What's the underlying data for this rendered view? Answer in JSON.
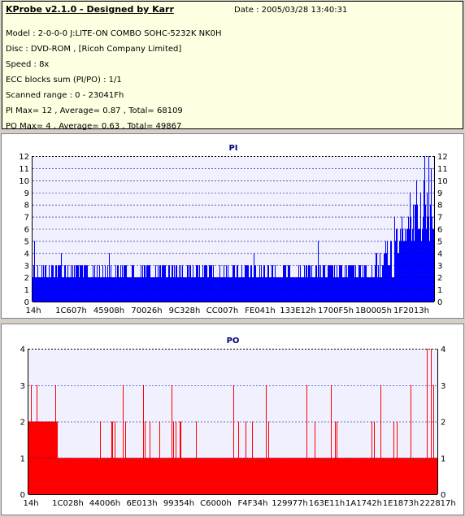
{
  "info": {
    "title": "KProbe v2.1.0 - Designed by Karr",
    "date": "Date : 2005/03/28 13:40:31",
    "lines": [
      "Model : 2-0-0-0 J:LITE-ON COMBO SOHC-5232K NK0H",
      "Disc : DVD-ROM ,  [Ricoh Company Limited]",
      "Speed : 8x",
      "ECC blocks sum (PI/PO) : 1/1",
      "Scanned range : 0 - 23041Fh",
      "PI Max= 12 , Average= 0.87 , Total= 68109",
      "PO Max= 4 , Average= 0.63 , Total= 49867"
    ]
  },
  "colors": {
    "pi": "#0000ff",
    "po": "#ff0000",
    "plot_bg": "#f0f0ff",
    "grid": "#000080"
  },
  "chart_data": [
    {
      "type": "bar",
      "title": "PI",
      "xlabel": "",
      "ylabel": "",
      "ylim": [
        0,
        12
      ],
      "yticks": [
        0,
        1,
        2,
        3,
        4,
        5,
        6,
        7,
        8,
        9,
        10,
        11,
        12
      ],
      "xticks": [
        "14h",
        "1C607h",
        "45908h",
        "70026h",
        "9C328h",
        "CC007h",
        "FE041h",
        "133E12h",
        "1700F5h",
        "1B0005h",
        "1F2013h"
      ],
      "grid": true,
      "baseline": {
        "from": 0.0,
        "to": 0.85,
        "value": 2
      },
      "rise_segments": [
        [
          0.85,
          3
        ],
        [
          0.9,
          4
        ],
        [
          0.95,
          6
        ],
        [
          1.0,
          7
        ]
      ],
      "notable_peaks": [
        {
          "pos": 0.005,
          "value": 5
        },
        {
          "pos": 0.07,
          "value": 4
        },
        {
          "pos": 0.19,
          "value": 4
        },
        {
          "pos": 0.55,
          "value": 4
        },
        {
          "pos": 0.71,
          "value": 5
        },
        {
          "pos": 0.9,
          "value": 7
        },
        {
          "pos": 0.94,
          "value": 9
        },
        {
          "pos": 0.955,
          "value": 10
        },
        {
          "pos": 0.975,
          "value": 12
        },
        {
          "pos": 0.985,
          "value": 12
        },
        {
          "pos": 0.992,
          "value": 11
        }
      ]
    },
    {
      "type": "bar",
      "title": "PO",
      "xlabel": "",
      "ylabel": "",
      "ylim": [
        0,
        4
      ],
      "yticks": [
        0,
        1,
        2,
        3,
        4
      ],
      "xticks": [
        "14h",
        "1C028h",
        "44006h",
        "6E013h",
        "99354h",
        "C6000h",
        "F4F34h",
        "129977h",
        "163E11h",
        "1A1742h",
        "1E1873h",
        "222817h"
      ],
      "grid": true,
      "segments": [
        {
          "from": 0.0,
          "to": 0.07,
          "value": 2
        },
        {
          "from": 0.07,
          "to": 1.0,
          "value": 1
        }
      ],
      "notable_peaks": [
        {
          "pos": 0.005,
          "value": 3
        },
        {
          "pos": 0.02,
          "value": 3
        },
        {
          "pos": 0.065,
          "value": 3
        },
        {
          "pos": 0.23,
          "value": 3
        },
        {
          "pos": 0.28,
          "value": 3
        },
        {
          "pos": 0.35,
          "value": 3
        },
        {
          "pos": 0.5,
          "value": 3
        },
        {
          "pos": 0.58,
          "value": 3
        },
        {
          "pos": 0.68,
          "value": 3
        },
        {
          "pos": 0.74,
          "value": 3
        },
        {
          "pos": 0.86,
          "value": 3
        },
        {
          "pos": 0.935,
          "value": 3
        },
        {
          "pos": 0.975,
          "value": 4
        },
        {
          "pos": 0.985,
          "value": 4
        },
        {
          "pos": 0.99,
          "value": 3
        }
      ]
    }
  ]
}
